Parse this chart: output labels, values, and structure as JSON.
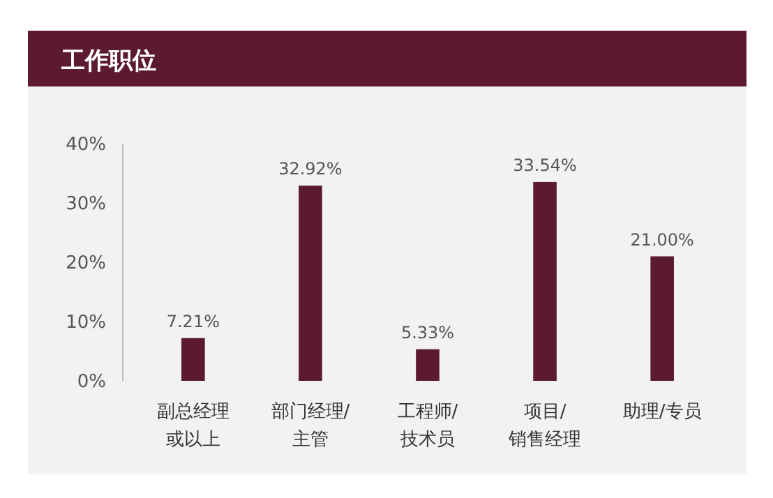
{
  "chart_data": {
    "type": "bar",
    "title": "工作职位",
    "categories": [
      "副总经理或以上",
      "部门经理/主管",
      "工程师/技术员",
      "项目/销售经理",
      "助理/专员"
    ],
    "values": [
      7.21,
      32.92,
      5.33,
      33.54,
      21.0
    ],
    "value_labels": [
      "7.21%",
      "32.92%",
      "5.33%",
      "33.54%",
      "21.00%"
    ],
    "color": "#5c1a2e",
    "ylim": [
      0,
      40
    ],
    "yticks": [
      {
        "value": 0,
        "label": "0%"
      },
      {
        "value": 10,
        "label": "10%"
      },
      {
        "value": 20,
        "label": "20%"
      },
      {
        "value": 30,
        "label": "30%"
      },
      {
        "value": 40,
        "label": "40%"
      }
    ],
    "grid": false
  }
}
